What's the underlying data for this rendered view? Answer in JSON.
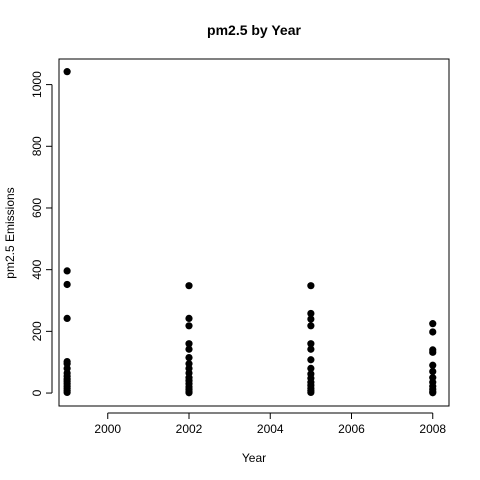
{
  "chart_data": {
    "type": "scatter",
    "title": "pm2.5 by Year",
    "xlabel": "Year",
    "ylabel": "pm2.5 Emissions",
    "xlim": [
      1998.8,
      2008.4
    ],
    "ylim": [
      -42,
      1083
    ],
    "xticks": [
      2000,
      2002,
      2004,
      2006,
      2008
    ],
    "yticks": [
      0,
      200,
      400,
      600,
      800,
      1000
    ],
    "grid": false,
    "series": [
      {
        "points": [
          {
            "x": 1999,
            "y": 1042
          },
          {
            "x": 1999,
            "y": 396
          },
          {
            "x": 1999,
            "y": 352
          },
          {
            "x": 1999,
            "y": 242
          },
          {
            "x": 1999,
            "y": 102
          },
          {
            "x": 1999,
            "y": 95
          },
          {
            "x": 1999,
            "y": 80
          },
          {
            "x": 1999,
            "y": 65
          },
          {
            "x": 1999,
            "y": 55
          },
          {
            "x": 1999,
            "y": 45
          },
          {
            "x": 1999,
            "y": 38
          },
          {
            "x": 1999,
            "y": 30
          },
          {
            "x": 1999,
            "y": 22
          },
          {
            "x": 1999,
            "y": 15
          },
          {
            "x": 1999,
            "y": 8
          },
          {
            "x": 1999,
            "y": 2
          },
          {
            "x": 2002,
            "y": 348
          },
          {
            "x": 2002,
            "y": 242
          },
          {
            "x": 2002,
            "y": 218
          },
          {
            "x": 2002,
            "y": 160
          },
          {
            "x": 2002,
            "y": 142
          },
          {
            "x": 2002,
            "y": 115
          },
          {
            "x": 2002,
            "y": 95
          },
          {
            "x": 2002,
            "y": 80
          },
          {
            "x": 2002,
            "y": 65
          },
          {
            "x": 2002,
            "y": 50
          },
          {
            "x": 2002,
            "y": 40
          },
          {
            "x": 2002,
            "y": 30
          },
          {
            "x": 2002,
            "y": 20
          },
          {
            "x": 2002,
            "y": 12
          },
          {
            "x": 2002,
            "y": 5
          },
          {
            "x": 2002,
            "y": 1
          },
          {
            "x": 2005,
            "y": 348
          },
          {
            "x": 2005,
            "y": 258
          },
          {
            "x": 2005,
            "y": 240
          },
          {
            "x": 2005,
            "y": 218
          },
          {
            "x": 2005,
            "y": 160
          },
          {
            "x": 2005,
            "y": 142
          },
          {
            "x": 2005,
            "y": 108
          },
          {
            "x": 2005,
            "y": 80
          },
          {
            "x": 2005,
            "y": 62
          },
          {
            "x": 2005,
            "y": 48
          },
          {
            "x": 2005,
            "y": 35
          },
          {
            "x": 2005,
            "y": 25
          },
          {
            "x": 2005,
            "y": 15
          },
          {
            "x": 2005,
            "y": 8
          },
          {
            "x": 2005,
            "y": 2
          },
          {
            "x": 2008,
            "y": 225
          },
          {
            "x": 2008,
            "y": 198
          },
          {
            "x": 2008,
            "y": 140
          },
          {
            "x": 2008,
            "y": 132
          },
          {
            "x": 2008,
            "y": 90
          },
          {
            "x": 2008,
            "y": 70
          },
          {
            "x": 2008,
            "y": 50
          },
          {
            "x": 2008,
            "y": 35
          },
          {
            "x": 2008,
            "y": 22
          },
          {
            "x": 2008,
            "y": 12
          },
          {
            "x": 2008,
            "y": 5
          },
          {
            "x": 2008,
            "y": 1
          }
        ]
      }
    ]
  }
}
